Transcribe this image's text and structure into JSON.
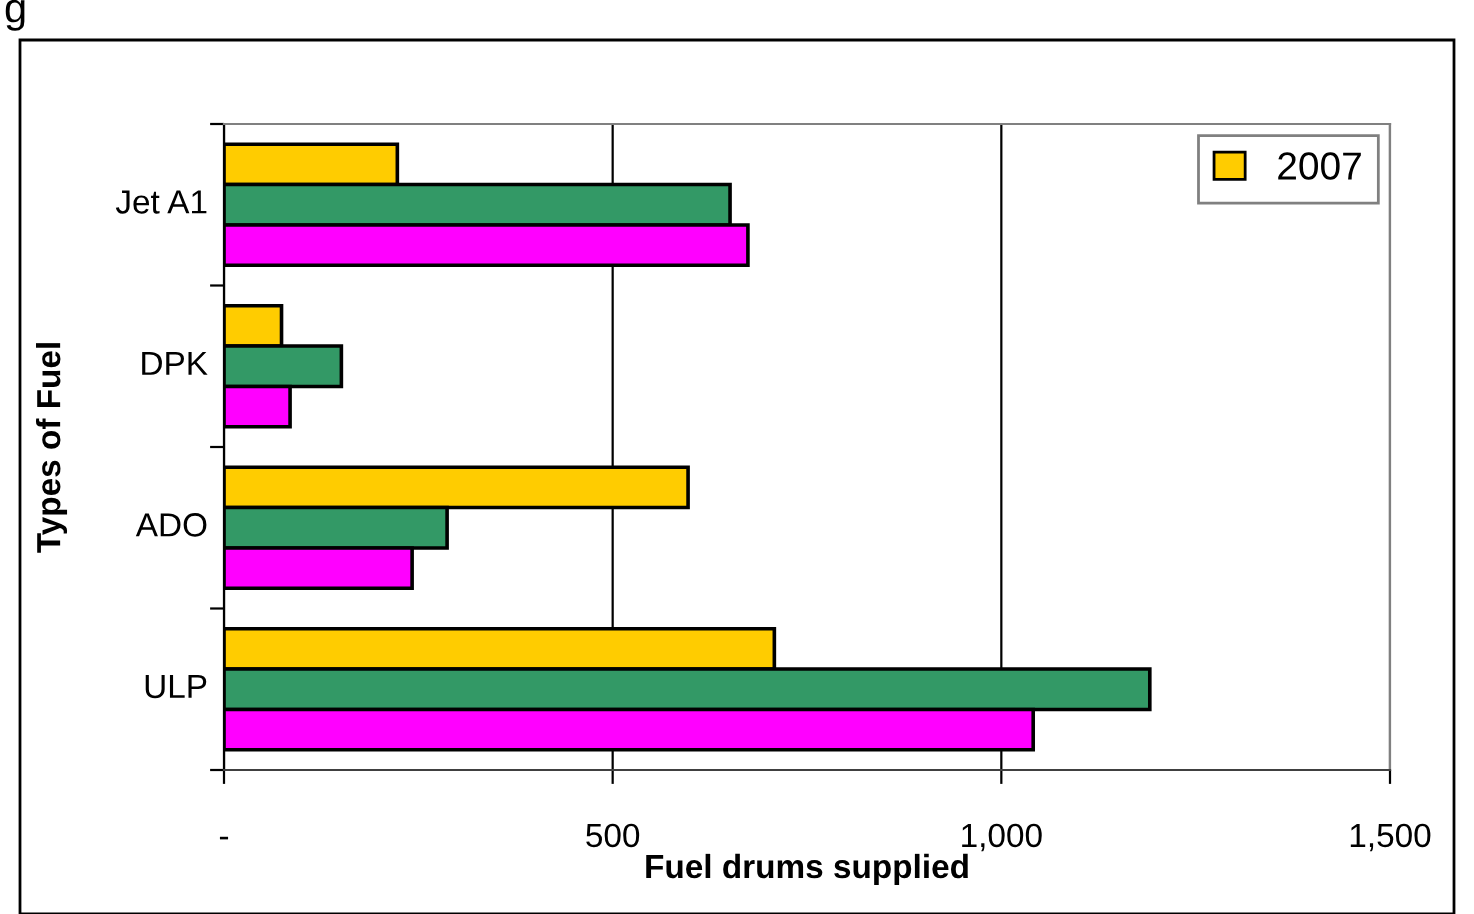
{
  "chart_data": {
    "type": "bar",
    "orientation": "horizontal",
    "title": "g",
    "xlabel": "Fuel drums supplied",
    "ylabel": "Types of Fuel",
    "categories": [
      "Jet A1",
      "DPK",
      "ADO",
      "ULP"
    ],
    "series": [
      {
        "name": "2007",
        "color": "#ffcc00",
        "values": [
          223,
          74,
          597,
          708
        ]
      },
      {
        "color": "#339966",
        "values": [
          651,
          151,
          287,
          1191
        ]
      },
      {
        "color": "#ff00ff",
        "values": [
          674,
          85,
          242,
          1041
        ]
      }
    ],
    "xlim": [
      0,
      1500
    ],
    "xticks": [
      {
        "value": 0,
        "label": "-"
      },
      {
        "value": 500,
        "label": "500"
      },
      {
        "value": 1000,
        "label": "1,000"
      },
      {
        "value": 1500,
        "label": "1,500"
      }
    ],
    "grid": "x",
    "legend": "top right"
  }
}
